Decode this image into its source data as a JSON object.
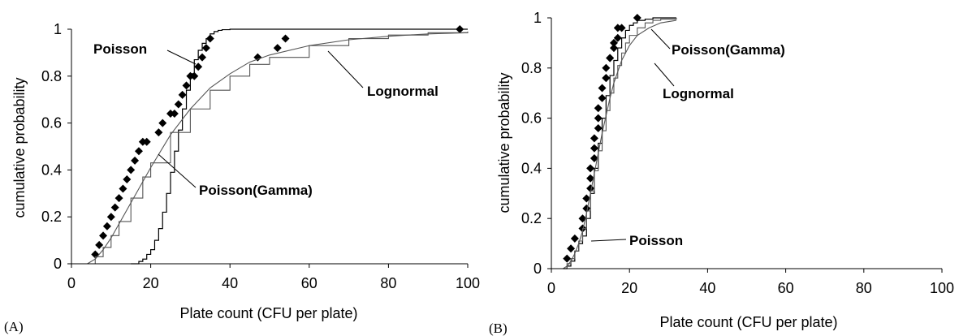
{
  "chart_data": [
    {
      "panel_label": "(A)",
      "type": "line",
      "xlabel": "Plate count (CFU per plate)",
      "ylabel": "cumulative probability",
      "xlim": [
        0,
        100
      ],
      "ylim": [
        0,
        1
      ],
      "xticks": [
        0,
        20,
        40,
        60,
        80,
        100
      ],
      "yticks": [
        0,
        0.2,
        0.4,
        0.6,
        0.8,
        1
      ],
      "x_tick_labels": [
        "0",
        "20",
        "40",
        "60",
        "80",
        "100"
      ],
      "y_tick_labels": [
        "0",
        "0.2",
        "0.4",
        "0.6",
        "0.8",
        "1"
      ],
      "grid": false,
      "annotations": [
        "Poisson",
        "Lognormal",
        "Poisson(Gamma)"
      ],
      "series": [
        {
          "style": "points",
          "marker": "diamond",
          "x": [
            6,
            7,
            8,
            9,
            10,
            11,
            12,
            13,
            14,
            15,
            16,
            17,
            18,
            19,
            22,
            23,
            25,
            26,
            27,
            28,
            29,
            30,
            31,
            32,
            33,
            34,
            35,
            47,
            52,
            54,
            98
          ],
          "y": [
            0.04,
            0.08,
            0.12,
            0.16,
            0.2,
            0.24,
            0.28,
            0.32,
            0.36,
            0.4,
            0.44,
            0.48,
            0.52,
            0.52,
            0.56,
            0.6,
            0.64,
            0.64,
            0.68,
            0.72,
            0.76,
            0.8,
            0.8,
            0.84,
            0.88,
            0.92,
            0.96,
            0.88,
            0.92,
            0.96,
            1.0
          ]
        },
        {
          "style": "step",
          "x": [
            15,
            17,
            18,
            19,
            20,
            21,
            22,
            23,
            24,
            25,
            26,
            27,
            28,
            29,
            30,
            31,
            32,
            33,
            34,
            35,
            36,
            37,
            38,
            40,
            42,
            100
          ],
          "y": [
            0,
            0.01,
            0.02,
            0.04,
            0.06,
            0.1,
            0.15,
            0.22,
            0.3,
            0.39,
            0.48,
            0.57,
            0.66,
            0.74,
            0.81,
            0.87,
            0.91,
            0.94,
            0.96,
            0.98,
            0.99,
            0.995,
            0.998,
            1.0,
            1.0,
            1.0
          ]
        },
        {
          "style": "line",
          "x": [
            4,
            6,
            8,
            10,
            12,
            15,
            18,
            20,
            25,
            30,
            35,
            40,
            45,
            50,
            60,
            70,
            80,
            90,
            100
          ],
          "y": [
            0.0,
            0.02,
            0.06,
            0.11,
            0.17,
            0.26,
            0.35,
            0.41,
            0.55,
            0.66,
            0.75,
            0.81,
            0.86,
            0.89,
            0.93,
            0.955,
            0.97,
            0.98,
            0.985
          ]
        },
        {
          "style": "step",
          "x": [
            4,
            6,
            8,
            10,
            12,
            15,
            18,
            20,
            25,
            30,
            35,
            40,
            45,
            50,
            60,
            70,
            80,
            90,
            100
          ],
          "y": [
            0.0,
            0.03,
            0.07,
            0.12,
            0.18,
            0.28,
            0.37,
            0.43,
            0.56,
            0.66,
            0.74,
            0.8,
            0.85,
            0.88,
            0.93,
            0.96,
            0.975,
            0.985,
            0.99
          ]
        }
      ]
    },
    {
      "panel_label": "(B)",
      "type": "line",
      "xlabel": "Plate count (CFU per plate)",
      "ylabel": "cumulative probability",
      "xlim": [
        0,
        100
      ],
      "ylim": [
        0,
        1
      ],
      "xticks": [
        0,
        20,
        40,
        60,
        80,
        100
      ],
      "yticks": [
        0,
        0.2,
        0.4,
        0.6,
        0.8,
        1
      ],
      "x_tick_labels": [
        "0",
        "20",
        "40",
        "60",
        "80",
        "100"
      ],
      "y_tick_labels": [
        "0",
        "0.2",
        "0.4",
        "0.6",
        "0.8",
        "1"
      ],
      "grid": false,
      "annotations": [
        "Poisson(Gamma)",
        "Lognormal",
        "Poisson"
      ],
      "series": [
        {
          "style": "points",
          "marker": "diamond",
          "x": [
            4,
            5,
            6,
            8,
            8,
            9,
            9,
            10,
            10,
            10,
            11,
            11,
            11,
            12,
            12,
            12,
            13,
            13,
            14,
            14,
            14,
            15,
            15,
            16,
            16,
            17,
            17,
            18,
            22
          ],
          "y": [
            0.04,
            0.08,
            0.12,
            0.16,
            0.2,
            0.24,
            0.28,
            0.32,
            0.36,
            0.4,
            0.44,
            0.48,
            0.52,
            0.56,
            0.6,
            0.64,
            0.68,
            0.72,
            0.76,
            0.76,
            0.8,
            0.84,
            0.84,
            0.88,
            0.9,
            0.92,
            0.96,
            0.96,
            1.0
          ]
        },
        {
          "style": "step",
          "x": [
            3,
            4,
            5,
            6,
            7,
            8,
            9,
            10,
            11,
            12,
            13,
            14,
            15,
            16,
            17,
            18,
            19,
            20,
            21,
            22,
            24,
            26,
            28,
            32
          ],
          "y": [
            0,
            0.01,
            0.03,
            0.07,
            0.1,
            0.13,
            0.2,
            0.3,
            0.4,
            0.5,
            0.6,
            0.69,
            0.77,
            0.83,
            0.88,
            0.92,
            0.95,
            0.97,
            0.98,
            0.99,
            0.995,
            1.0,
            1.0,
            1.0
          ]
        },
        {
          "style": "line",
          "x": [
            3,
            4,
            5,
            6,
            7,
            8,
            9,
            10,
            11,
            12,
            13,
            14,
            15,
            16,
            18,
            20,
            22,
            25,
            28,
            32
          ],
          "y": [
            0.0,
            0.01,
            0.03,
            0.06,
            0.1,
            0.15,
            0.22,
            0.3,
            0.38,
            0.46,
            0.54,
            0.61,
            0.68,
            0.74,
            0.83,
            0.89,
            0.93,
            0.96,
            0.98,
            0.99
          ]
        },
        {
          "style": "step",
          "x": [
            3,
            4,
            5,
            6,
            7,
            8,
            9,
            10,
            11,
            12,
            13,
            14,
            15,
            16,
            17,
            18,
            19,
            20,
            22,
            24,
            26,
            28,
            32
          ],
          "y": [
            0,
            0.02,
            0.04,
            0.07,
            0.11,
            0.16,
            0.23,
            0.31,
            0.39,
            0.47,
            0.55,
            0.63,
            0.7,
            0.76,
            0.81,
            0.86,
            0.9,
            0.93,
            0.96,
            0.98,
            0.99,
            0.995,
            1.0
          ]
        }
      ]
    }
  ]
}
